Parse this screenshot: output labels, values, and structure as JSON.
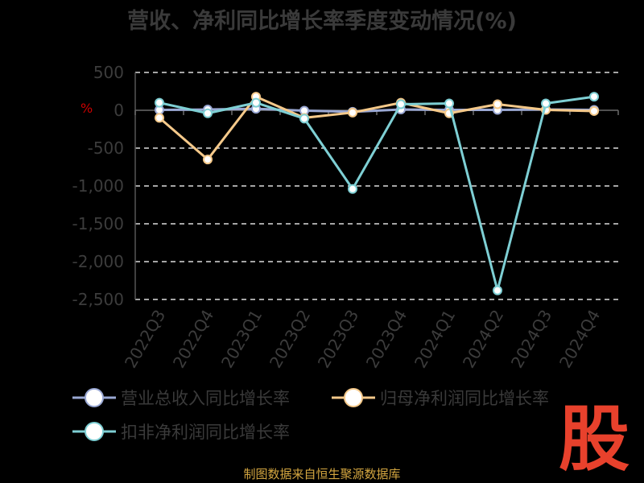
{
  "header": {
    "title": "营收、净利同比增长率季度变动情况(%)"
  },
  "footer": {
    "source": "制图数据来自恒生聚源数据库"
  },
  "logo": {
    "glyph": "股",
    "color": "#e8412c"
  },
  "axis_marker": {
    "text": "%",
    "color": "#cc0000"
  },
  "chart_data": {
    "type": "line",
    "title": "营收、净利同比增长率季度变动情况(%)",
    "xlabel": "",
    "ylabel": "",
    "categories": [
      "2022Q3",
      "2022Q4",
      "2023Q1",
      "2023Q2",
      "2023Q3",
      "2023Q4",
      "2024Q1",
      "2024Q2",
      "2024Q3",
      "2024Q4"
    ],
    "y_ticks": [
      500,
      0,
      -500,
      -1000,
      -1500,
      -2000,
      -2500
    ],
    "y_tick_labels": [
      "500",
      "0",
      "-500",
      "-1,000",
      "-1,500",
      "-2,000",
      "-2,500"
    ],
    "ylim": [
      -2500,
      500
    ],
    "grid": true,
    "legend_position": "bottom",
    "series": [
      {
        "name": "营业总收入同比增长率",
        "color": "#9aa8d4",
        "values": [
          5,
          10,
          20,
          -5,
          -20,
          10,
          5,
          5,
          10,
          5
        ]
      },
      {
        "name": "归母净利润同比增长率",
        "color": "#f5c98a",
        "values": [
          -100,
          -650,
          180,
          -100,
          -30,
          100,
          -40,
          80,
          5,
          -10
        ]
      },
      {
        "name": "扣非净利润同比增长率",
        "color": "#7ecfd4",
        "values": [
          100,
          -40,
          100,
          -110,
          -1040,
          80,
          90,
          -2380,
          90,
          180
        ]
      }
    ]
  }
}
